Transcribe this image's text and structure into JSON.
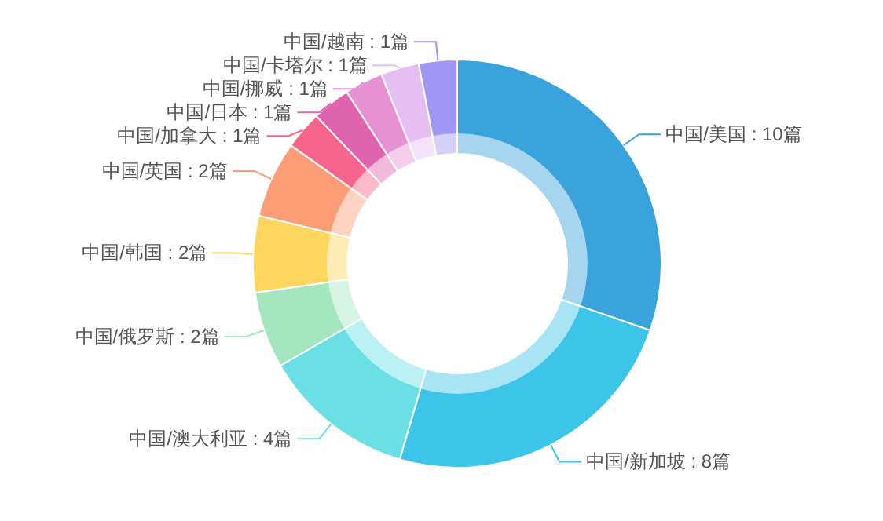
{
  "chart_data": {
    "type": "donut",
    "categories": [
      "中国/美国",
      "中国/新加坡",
      "中国/澳大利亚",
      "中国/俄罗斯",
      "中国/韩国",
      "中国/英国",
      "中国/加拿大",
      "中国/日本",
      "中国/挪威",
      "中国/卡塔尔",
      "中国/越南"
    ],
    "values": [
      10,
      8,
      4,
      2,
      2,
      2,
      1,
      1,
      1,
      1,
      1
    ],
    "value_labels": [
      "10篇",
      "8篇",
      "4篇",
      "2篇",
      "2篇",
      "2篇",
      "1篇",
      "1篇",
      "1篇",
      "1篇",
      "1篇"
    ],
    "colors": [
      "#3aa3dc",
      "#3cc5e9",
      "#6be0e4",
      "#a3e6c0",
      "#fdd65e",
      "#fc9d78",
      "#f8658a",
      "#e064ad",
      "#e691d2",
      "#e5bff3",
      "#9e97f3"
    ]
  }
}
